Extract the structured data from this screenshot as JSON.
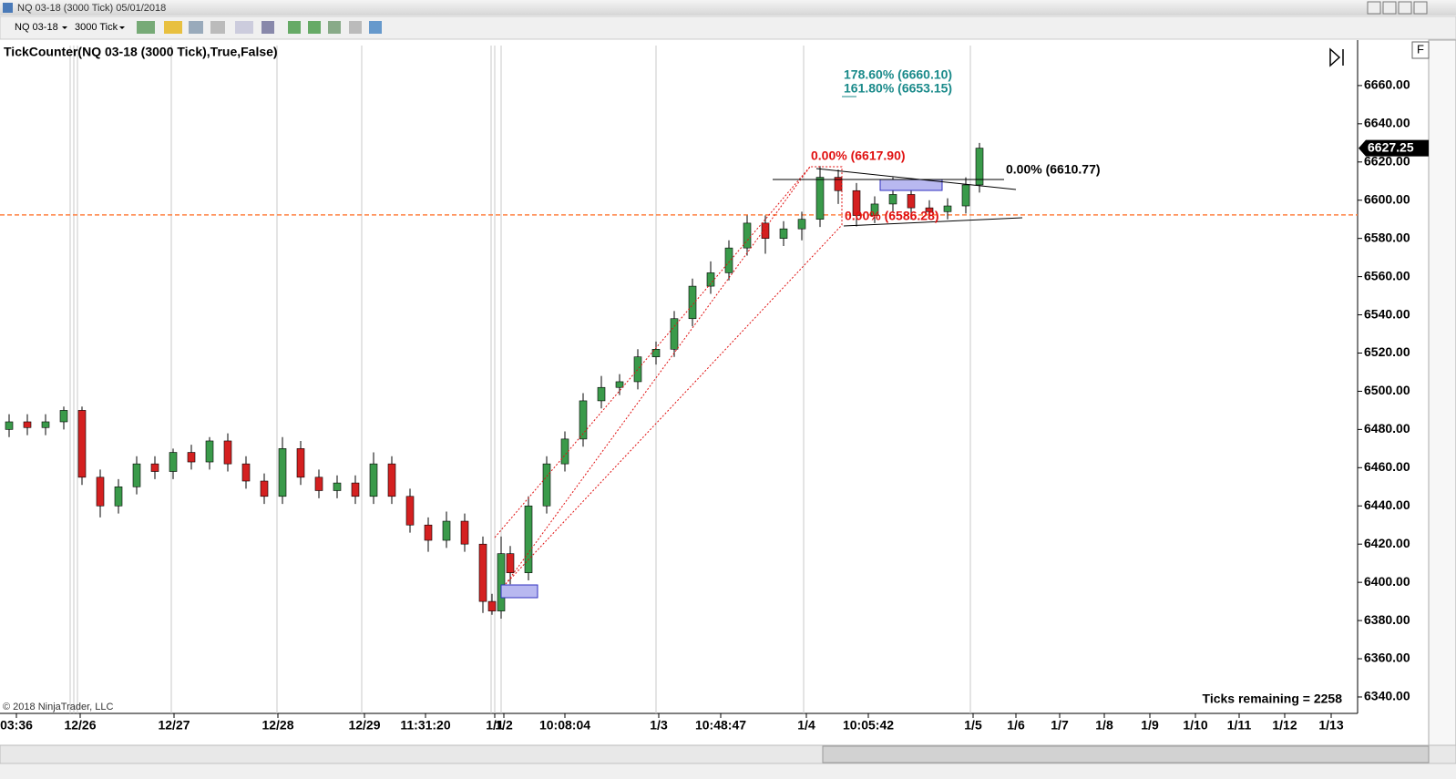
{
  "window": {
    "title": "NQ 03-18 (3000 Tick)  05/01/2018"
  },
  "toolbar": {
    "instrument": "NQ 03-18",
    "period": "3000 Tick"
  },
  "side_tab": "F",
  "chart_data": {
    "type": "candlestick",
    "title": "TickCounter(NQ 03-18 (3000 Tick),True,False)",
    "copyright": "© 2018 NinjaTrader, LLC",
    "status": "Ticks remaining = 2258",
    "up_color": "#3a9a4a",
    "down_color": "#d42020",
    "x": [
      1,
      3,
      5,
      7,
      9,
      11,
      13,
      15,
      17,
      19,
      21,
      23,
      25,
      27,
      29,
      31,
      33,
      35,
      37,
      39,
      41,
      43,
      45,
      47,
      49,
      51,
      53,
      54,
      55,
      56,
      58,
      60,
      62,
      64,
      66,
      68,
      70,
      72,
      74,
      76,
      78,
      80,
      82,
      84,
      86,
      88,
      90,
      92,
      94,
      96,
      98,
      100,
      102,
      104,
      106,
      107.5
    ],
    "open": [
      6480,
      6484,
      6481,
      6484,
      6490,
      6455,
      6440,
      6450,
      6462,
      6458,
      6468,
      6463,
      6474,
      6462,
      6453,
      6445,
      6470,
      6455,
      6448,
      6452,
      6445,
      6462,
      6445,
      6430,
      6422,
      6432,
      6420,
      6390,
      6385,
      6415,
      6405,
      6440,
      6462,
      6475,
      6495,
      6502,
      6505,
      6518,
      6522,
      6538,
      6555,
      6562,
      6575,
      6588,
      6580,
      6585,
      6590,
      6612,
      6605,
      6592,
      6598,
      6603,
      6596,
      6594,
      6597,
      6608
    ],
    "high": [
      6488,
      6488,
      6488,
      6492,
      6492,
      6459,
      6454,
      6466,
      6466,
      6470,
      6472,
      6476,
      6478,
      6466,
      6457,
      6476,
      6474,
      6459,
      6456,
      6456,
      6468,
      6466,
      6449,
      6434,
      6437,
      6436,
      6424,
      6394,
      6424,
      6419,
      6445,
      6466,
      6479,
      6499,
      6508,
      6509,
      6522,
      6526,
      6542,
      6559,
      6568,
      6579,
      6592,
      6592,
      6589,
      6594,
      6617.9,
      6616,
      6609,
      6602,
      6612,
      6607,
      6600,
      6601,
      6612,
      6630
    ],
    "low": [
      6476,
      6477,
      6477,
      6480,
      6451,
      6434,
      6436,
      6446,
      6454,
      6454,
      6459,
      6459,
      6458,
      6449,
      6441,
      6441,
      6451,
      6444,
      6444,
      6441,
      6441,
      6441,
      6426,
      6416,
      6418,
      6416,
      6384,
      6383,
      6381,
      6399,
      6401,
      6436,
      6458,
      6471,
      6491,
      6498,
      6501,
      6514,
      6518,
      6534,
      6551,
      6558,
      6571,
      6572,
      6576,
      6579,
      6586,
      6598,
      6586.28,
      6588,
      6594,
      6590,
      6590,
      6590,
      6593,
      6604
    ],
    "close": [
      6484,
      6481,
      6484,
      6490,
      6455,
      6440,
      6450,
      6462,
      6458,
      6468,
      6463,
      6474,
      6462,
      6453,
      6445,
      6470,
      6455,
      6448,
      6452,
      6445,
      6462,
      6445,
      6430,
      6422,
      6432,
      6420,
      6390,
      6385,
      6415,
      6405,
      6440,
      6462,
      6475,
      6495,
      6502,
      6505,
      6518,
      6522,
      6538,
      6555,
      6562,
      6575,
      6588,
      6580,
      6585,
      6590,
      6612,
      6605,
      6592,
      6598,
      6603,
      6596,
      6594,
      6597,
      6608,
      6627.25
    ],
    "last_price": {
      "value": 6627.25,
      "label": "6627.25"
    },
    "reference_line": 6592.3,
    "xlim": [
      0,
      149
    ],
    "ylim": [
      6331.4,
      6683.8
    ],
    "yticks": [
      {
        "value": 6340,
        "label": "6340.00"
      },
      {
        "value": 6360,
        "label": "6360.00"
      },
      {
        "value": 6380,
        "label": "6380.00"
      },
      {
        "value": 6400,
        "label": "6400.00"
      },
      {
        "value": 6420,
        "label": "6420.00"
      },
      {
        "value": 6440,
        "label": "6440.00"
      },
      {
        "value": 6460,
        "label": "6460.00"
      },
      {
        "value": 6480,
        "label": "6480.00"
      },
      {
        "value": 6500,
        "label": "6500.00"
      },
      {
        "value": 6520,
        "label": "6520.00"
      },
      {
        "value": 6540,
        "label": "6540.00"
      },
      {
        "value": 6560,
        "label": "6560.00"
      },
      {
        "value": 6580,
        "label": "6580.00"
      },
      {
        "value": 6600,
        "label": "6600.00"
      },
      {
        "value": 6620,
        "label": "6620.00"
      },
      {
        "value": 6640,
        "label": "6640.00"
      },
      {
        "value": 6660,
        "label": "6660.00"
      }
    ],
    "xticks": [
      {
        "value": 1.8,
        "label": "03:36"
      },
      {
        "value": 8.8,
        "label": "12/26"
      },
      {
        "value": 19.1,
        "label": "12/27"
      },
      {
        "value": 30.5,
        "label": "12/28"
      },
      {
        "value": 40.0,
        "label": "12/29"
      },
      {
        "value": 46.7,
        "label": "11:31:20"
      },
      {
        "value": 54.3,
        "label": "1/1"
      },
      {
        "value": 55.3,
        "label": "1/2"
      },
      {
        "value": 62.0,
        "label": "10:08:04"
      },
      {
        "value": 72.3,
        "label": "1/3"
      },
      {
        "value": 79.1,
        "label": "10:48:47"
      },
      {
        "value": 88.5,
        "label": "1/4"
      },
      {
        "value": 95.3,
        "label": "10:05:42"
      },
      {
        "value": 106.8,
        "label": "1/5"
      },
      {
        "value": 111.5,
        "label": "1/6"
      },
      {
        "value": 116.3,
        "label": "1/7"
      },
      {
        "value": 121.2,
        "label": "1/8"
      },
      {
        "value": 126.2,
        "label": "1/9"
      },
      {
        "value": 131.2,
        "label": "1/10"
      },
      {
        "value": 136.0,
        "label": "1/11"
      },
      {
        "value": 141.0,
        "label": "1/12"
      },
      {
        "value": 146.1,
        "label": "1/13"
      }
    ],
    "annotations": [
      {
        "text": "178.60% (6660.10)",
        "color": "#1a8a8a"
      },
      {
        "text": "161.80% (6653.15)",
        "color": "#1a8a8a"
      },
      {
        "text": "0.00% (6617.90)",
        "color": "#e01010"
      },
      {
        "text": "0.00% (6610.77)",
        "color": "#000000"
      },
      {
        "text": "0.00% (6586.28)",
        "color": "#e01010"
      }
    ]
  }
}
